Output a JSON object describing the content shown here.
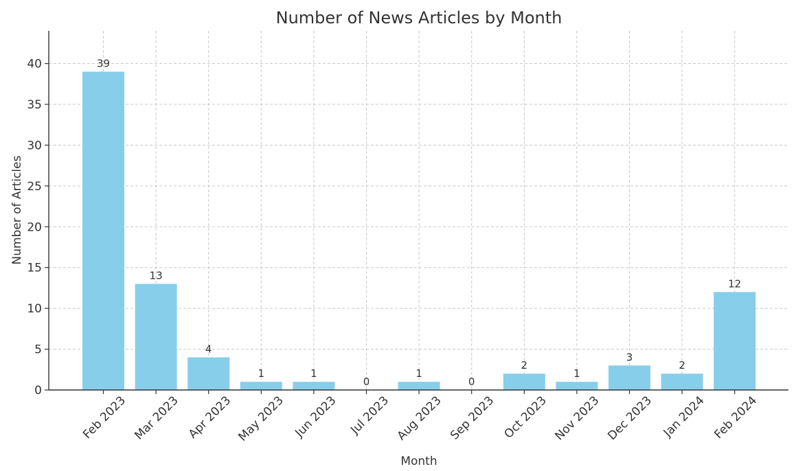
{
  "chart_data": {
    "type": "bar",
    "title": "Number of News Articles by Month",
    "xlabel": "Month",
    "ylabel": "Number of Articles",
    "categories": [
      "Feb 2023",
      "Mar 2023",
      "Apr 2023",
      "May 2023",
      "Jun 2023",
      "Jul 2023",
      "Aug 2023",
      "Sep 2023",
      "Oct 2023",
      "Nov 2023",
      "Dec 2023",
      "Jan 2024",
      "Feb 2024"
    ],
    "values": [
      39,
      13,
      4,
      1,
      1,
      0,
      1,
      0,
      2,
      1,
      3,
      2,
      12
    ],
    "ylim": [
      0,
      44
    ],
    "yticks": [
      0,
      5,
      10,
      15,
      20,
      25,
      30,
      35,
      40
    ],
    "grid": true,
    "bar_color": "#87CEEB"
  }
}
